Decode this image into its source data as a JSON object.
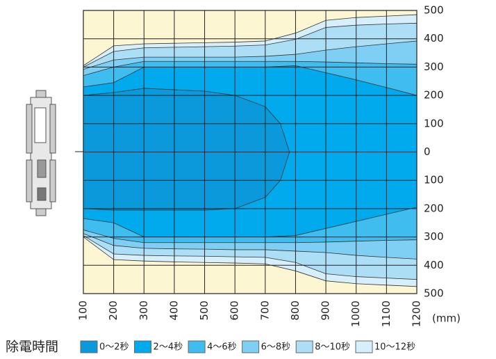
{
  "chart_data": {
    "type": "area-bands",
    "xlim": [
      100,
      1200
    ],
    "xticks": [
      100,
      200,
      300,
      400,
      500,
      600,
      700,
      800,
      900,
      1000,
      1100,
      1200
    ],
    "ylim": [
      -500,
      500
    ],
    "yticks": [
      {
        "value": 500,
        "label": "500"
      },
      {
        "value": 400,
        "label": "400"
      },
      {
        "value": 300,
        "label": "300"
      },
      {
        "value": 200,
        "label": "200"
      },
      {
        "value": 100,
        "label": "100"
      },
      0,
      {
        "value": -100,
        "label": "100"
      },
      {
        "value": -200,
        "label": "200"
      },
      {
        "value": -300,
        "label": "300"
      },
      {
        "value": -400,
        "label": "400"
      },
      {
        "value": -500,
        "label": "500"
      }
    ],
    "x_unit": "(mm)",
    "legend_title": "除電時間",
    "background": "#fdf6d3",
    "grid": true,
    "series": [
      {
        "name": "10～12秒",
        "color": "#d6effb",
        "x": [
          100,
          200,
          300,
          400,
          500,
          600,
          700,
          800,
          900,
          1000,
          1100,
          1200
        ],
        "upper": [
          305,
          375,
          382,
          384,
          386,
          388,
          392,
          420,
          465,
          475,
          480,
          485
        ],
        "lower": [
          -300,
          -380,
          -385,
          -388,
          -390,
          -392,
          -395,
          -420,
          -455,
          -465,
          -470,
          -475
        ]
      },
      {
        "name": "8～10秒",
        "color": "#acdef6",
        "x": [
          100,
          200,
          300,
          400,
          500,
          600,
          700,
          800,
          900,
          1000,
          1100,
          1200
        ],
        "upper": [
          300,
          355,
          368,
          370,
          372,
          374,
          378,
          398,
          440,
          448,
          452,
          455
        ],
        "lower": [
          -295,
          -360,
          -365,
          -367,
          -368,
          -370,
          -372,
          -390,
          -430,
          -440,
          -445,
          -450
        ]
      },
      {
        "name": "6～8秒",
        "color": "#7fcff4",
        "x": [
          100,
          200,
          300,
          400,
          500,
          600,
          700,
          800,
          900,
          1000,
          1100,
          1200
        ],
        "upper": [
          292,
          325,
          335,
          335,
          335,
          335,
          338,
          345,
          360,
          372,
          382,
          392
        ],
        "lower": [
          -288,
          -330,
          -340,
          -342,
          -343,
          -345,
          -345,
          -350,
          -355,
          -365,
          -372,
          -378
        ]
      },
      {
        "name": "4～6秒",
        "color": "#40bdef",
        "x": [
          100,
          200,
          300,
          400,
          500,
          600,
          700,
          800,
          900,
          1000,
          1100,
          1200
        ],
        "upper": [
          270,
          300,
          320,
          320,
          320,
          320,
          320,
          320,
          318,
          315,
          312,
          310
        ],
        "lower": [
          -275,
          -305,
          -320,
          -320,
          -320,
          -320,
          -320,
          -320,
          -318,
          -315,
          -312,
          -310
        ]
      },
      {
        "name": "2～4秒",
        "color": "#00aaec",
        "x": [
          100,
          200,
          300,
          400,
          500,
          600,
          700,
          800,
          900,
          1000,
          1100,
          1200
        ],
        "upper": [
          230,
          245,
          300,
          300,
          300,
          300,
          300,
          305,
          280,
          255,
          228,
          200
        ],
        "lower": [
          -235,
          -250,
          -300,
          -300,
          -300,
          -300,
          -300,
          -295,
          -270,
          -245,
          -220,
          -195
        ]
      },
      {
        "name": "0～2秒",
        "color": "#0a9adc",
        "x": [
          100,
          200,
          300,
          400,
          500,
          600,
          700,
          750,
          780
        ],
        "upper": [
          200,
          210,
          225,
          220,
          215,
          200,
          160,
          100,
          0
        ],
        "lower": [
          -200,
          -205,
          -205,
          -205,
          -205,
          -200,
          -160,
          -100,
          0
        ]
      }
    ]
  }
}
